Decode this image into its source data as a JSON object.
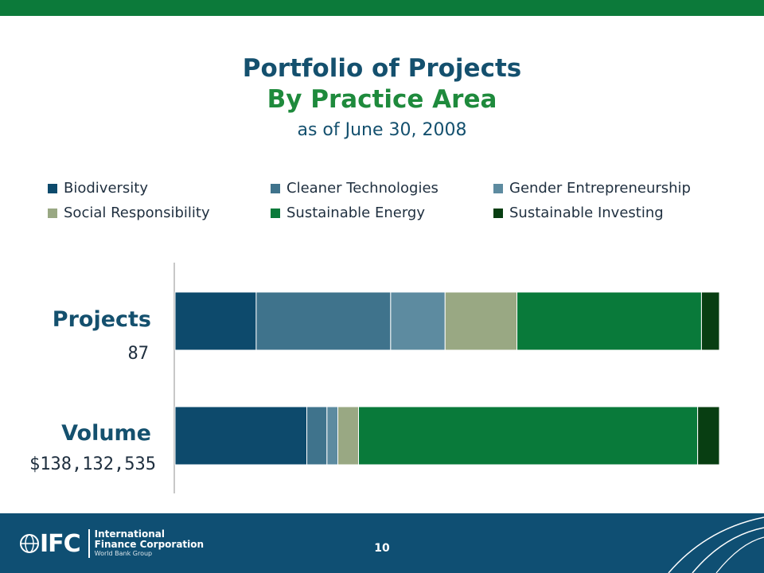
{
  "slide": {
    "title": "Portfolio of Projects",
    "subtitle": "By Practice Area",
    "date": "as of June 30, 2008",
    "page_number": "10"
  },
  "footer": {
    "logo_mark": "IFC",
    "logo_line1": "International",
    "logo_line2": "Finance Corporation",
    "logo_line3": "World Bank Group"
  },
  "colors": {
    "top_bar": "#0c7a3a",
    "footer": "#0f4f73",
    "title": "#14506e",
    "subtitle": "#1e8a3c"
  },
  "chart_data": {
    "type": "bar",
    "orientation": "horizontal",
    "stacked": "100%",
    "categories": [
      "Projects",
      "Volume"
    ],
    "category_values": [
      "87",
      "$138,132,535"
    ],
    "xlim": [
      0,
      100
    ],
    "grid": false,
    "legend_position": "top",
    "series": [
      {
        "name": "Biodiversity",
        "color": "#0d4a6c",
        "values": [
          14.9,
          24.2
        ]
      },
      {
        "name": "Cleaner Technologies",
        "color": "#3f738c",
        "values": [
          24.7,
          3.7
        ]
      },
      {
        "name": "Gender Entrepreneurship",
        "color": "#5d8ba0",
        "values": [
          10.0,
          2.0
        ]
      },
      {
        "name": "Social Responsibility",
        "color": "#99a883",
        "values": [
          13.2,
          3.8
        ]
      },
      {
        "name": "Sustainable Energy",
        "color": "#097a3a",
        "values": [
          33.9,
          62.3
        ]
      },
      {
        "name": "Sustainable Investing",
        "color": "#083e12",
        "values": [
          3.3,
          4.0
        ]
      }
    ]
  }
}
